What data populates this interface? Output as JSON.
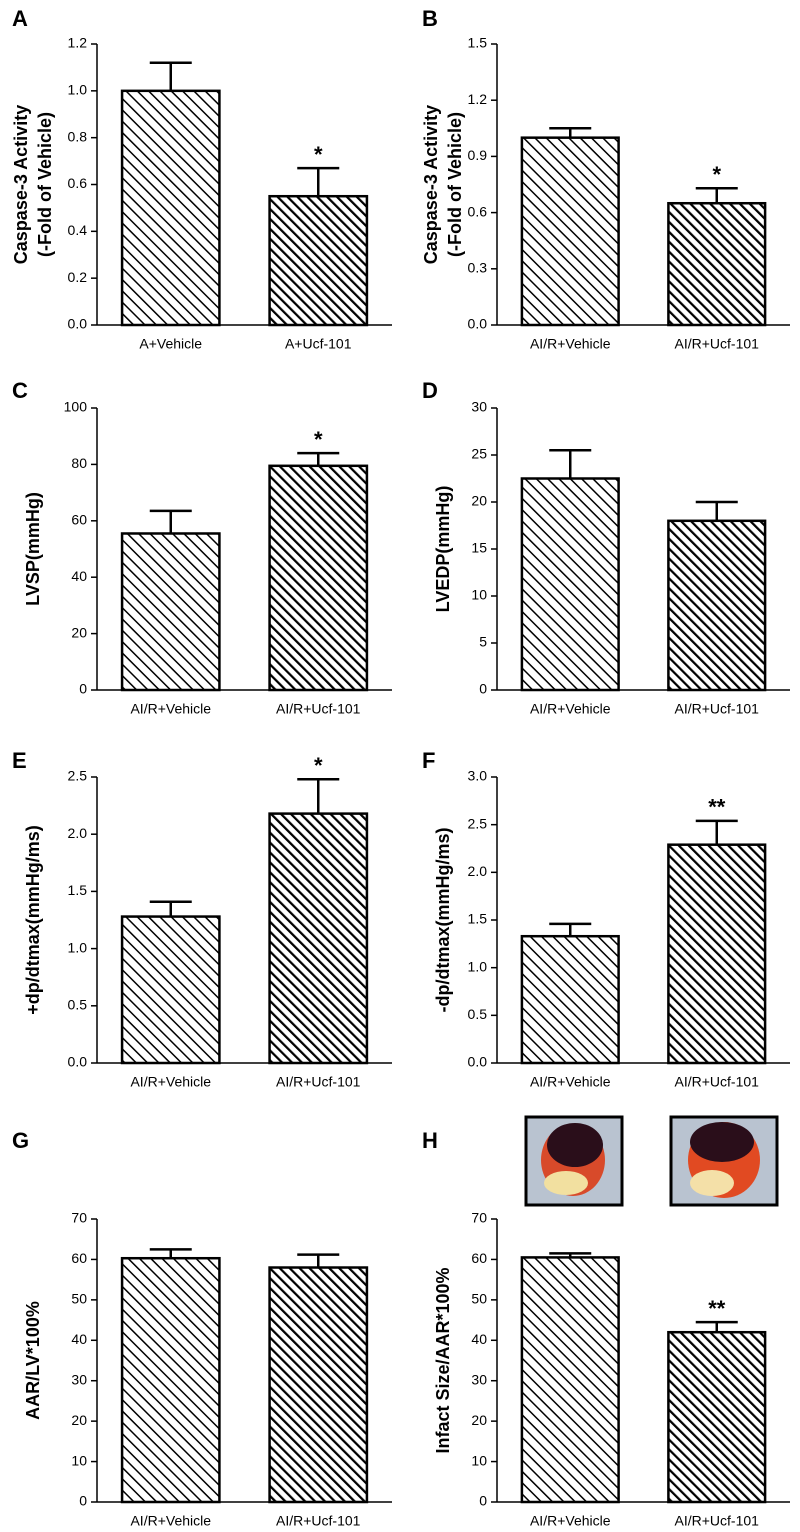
{
  "chart_data": [
    {
      "type": "bar",
      "panel": "A",
      "ylabel": [
        "Caspase-3 Activity",
        "(-Fold of Vehicle)"
      ],
      "categories": [
        "A+Vehicle",
        "A+Ucf-101"
      ],
      "values": [
        1.0,
        0.55
      ],
      "errors": [
        0.12,
        0.12
      ],
      "annotations": [
        null,
        "*"
      ],
      "ylim": [
        0,
        1.2
      ],
      "yticks": [
        {
          "value": 0,
          "label": "0.0"
        },
        0.2,
        0.4,
        0.6,
        0.8,
        {
          "value": 1,
          "label": "1.0"
        },
        1.2
      ]
    },
    {
      "type": "bar",
      "panel": "B",
      "ylabel": [
        "Caspase-3 Activity",
        "(-Fold of Vehicle)"
      ],
      "categories": [
        "AI/R+Vehicle",
        "AI/R+Ucf-101"
      ],
      "values": [
        1.0,
        0.65
      ],
      "errors": [
        0.05,
        0.08
      ],
      "annotations": [
        null,
        "*"
      ],
      "ylim": [
        0,
        1.5
      ],
      "yticks": [
        {
          "value": 0,
          "label": "0.0"
        },
        0.3,
        0.6,
        0.9,
        1.2,
        1.5
      ]
    },
    {
      "type": "bar",
      "panel": "C",
      "ylabel": [
        "LVSP(mmHg)"
      ],
      "categories": [
        "AI/R+Vehicle",
        "AI/R+Ucf-101"
      ],
      "values": [
        55.5,
        79.5
      ],
      "errors": [
        8,
        4.5
      ],
      "annotations": [
        null,
        "*"
      ],
      "ylim": [
        0,
        100
      ],
      "yticks": [
        0,
        20,
        40,
        60,
        80,
        100
      ]
    },
    {
      "type": "bar",
      "panel": "D",
      "ylabel": [
        "LVEDP(mmHg)"
      ],
      "categories": [
        "AI/R+Vehicle",
        "AI/R+Ucf-101"
      ],
      "values": [
        22.5,
        18
      ],
      "errors": [
        3,
        2
      ],
      "ylim": [
        0,
        30
      ],
      "yticks": [
        0,
        5,
        10,
        15,
        20,
        25,
        30
      ]
    },
    {
      "type": "bar",
      "panel": "E",
      "ylabel": [
        "+dp/dtmax(mmHg/ms)"
      ],
      "categories": [
        "AI/R+Vehicle",
        "AI/R+Ucf-101"
      ],
      "values": [
        1.28,
        2.18
      ],
      "errors": [
        0.13,
        0.3
      ],
      "annotations": [
        null,
        "*"
      ],
      "ylim": [
        0,
        2.5
      ],
      "yticks": [
        {
          "value": 0,
          "label": "0.0"
        },
        0.5,
        {
          "value": 1,
          "label": "1.0"
        },
        1.5,
        {
          "value": 2,
          "label": "2.0"
        },
        2.5
      ]
    },
    {
      "type": "bar",
      "panel": "F",
      "ylabel": [
        "-dp/dtmax(mmHg/ms)"
      ],
      "categories": [
        "AI/R+Vehicle",
        "AI/R+Ucf-101"
      ],
      "values": [
        1.33,
        2.29
      ],
      "errors": [
        0.13,
        0.25
      ],
      "annotations": [
        null,
        "**"
      ],
      "ylim": [
        0,
        3
      ],
      "yticks": [
        {
          "value": 0,
          "label": "0.0"
        },
        0.5,
        {
          "value": 1,
          "label": "1.0"
        },
        1.5,
        {
          "value": 2,
          "label": "2.0"
        },
        2.5,
        {
          "value": 3,
          "label": "3.0"
        }
      ]
    },
    {
      "type": "bar",
      "panel": "G",
      "ylabel": [
        "AAR/LV*100%"
      ],
      "categories": [
        "AI/R+Vehicle",
        "AI/R+Ucf-101"
      ],
      "values": [
        60.3,
        58
      ],
      "errors": [
        2.2,
        3.2
      ],
      "ylim": [
        0,
        70
      ],
      "yticks": [
        0,
        10,
        20,
        30,
        40,
        50,
        60,
        70
      ]
    },
    {
      "type": "bar",
      "panel": "H",
      "ylabel": [
        "Infact Size/AAR*100%"
      ],
      "categories": [
        "AI/R+Vehicle",
        "AI/R+Ucf-101"
      ],
      "values": [
        60.5,
        42
      ],
      "errors": [
        1,
        2.5
      ],
      "annotations": [
        null,
        "**"
      ],
      "ylim": [
        0,
        70
      ],
      "yticks": [
        0,
        10,
        20,
        30,
        40,
        50,
        60,
        70
      ]
    }
  ]
}
